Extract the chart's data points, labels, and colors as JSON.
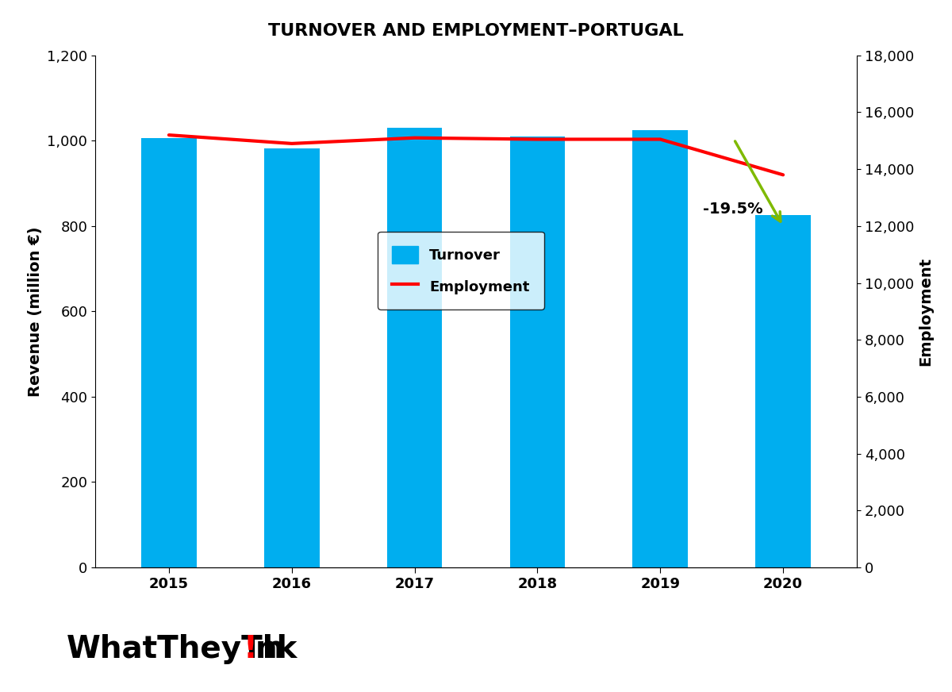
{
  "title": "TURNOVER AND EMPLOYMENT–PORTUGAL",
  "years": [
    2015,
    2016,
    2017,
    2018,
    2019,
    2020
  ],
  "turnover": [
    1007,
    982,
    1030,
    1010,
    1025,
    825
  ],
  "employment": [
    15200,
    14900,
    15100,
    15050,
    15050,
    13800
  ],
  "bar_color": "#00AEEF",
  "line_color": "#FF0000",
  "arrow_color": "#7FBA00",
  "ylabel_left": "Revenue (million €)",
  "ylabel_right": "Employment",
  "ylim_left": [
    0,
    1200
  ],
  "ylim_right": [
    0,
    18000
  ],
  "yticks_left": [
    0,
    200,
    400,
    600,
    800,
    1000,
    1200
  ],
  "yticks_right": [
    0,
    2000,
    4000,
    6000,
    8000,
    10000,
    12000,
    14000,
    16000,
    18000
  ],
  "annotation_text": "-19.5%",
  "background_color": "#FFFFFF",
  "line_width": 3,
  "bar_width": 0.45
}
